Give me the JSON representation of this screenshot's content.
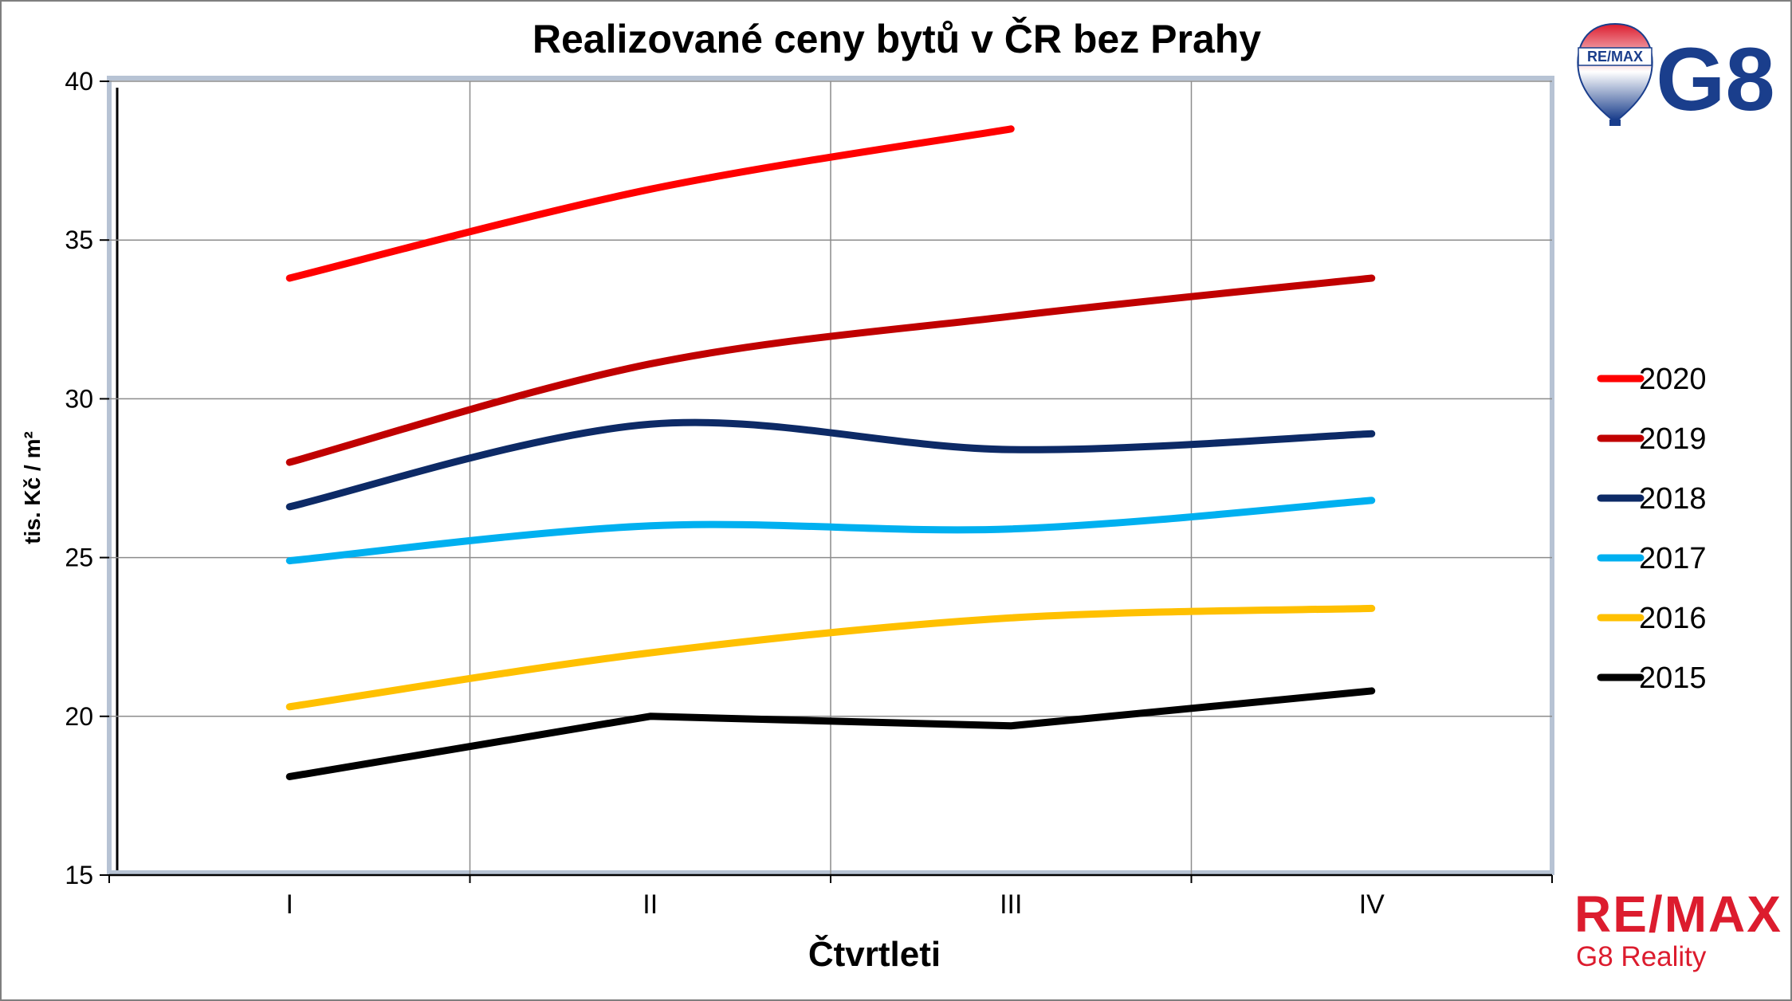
{
  "colors": {
    "background": "#ffffff",
    "grid": "#8c8c8c",
    "axis": "#1a1a1a",
    "frame": "#b7c3d4",
    "remax_red": "#dc1c2e",
    "remax_blue": "#1a3e8c"
  },
  "branding": {
    "badge_text": "RE/MAX",
    "badge_name": "G8",
    "footer_title": "RE/MAX",
    "footer_subtitle": "G8 Reality",
    "icon": "hot-air-balloon-icon"
  },
  "chart_data": {
    "type": "line",
    "title": "Realizované ceny bytů v ČR bez Prahy",
    "xlabel": "Čtvrtleti",
    "ylabel": "tis. Kč / m²",
    "categories": [
      "I",
      "II",
      "III",
      "IV"
    ],
    "ylim": [
      15,
      40
    ],
    "yticks": [
      15,
      20,
      25,
      30,
      35,
      40
    ],
    "grid": true,
    "legend_position": "right",
    "series": [
      {
        "name": "2020",
        "color": "#ff0000",
        "smooth": true,
        "values": [
          33.8,
          36.6,
          38.5,
          null
        ]
      },
      {
        "name": "2019",
        "color": "#c00000",
        "smooth": true,
        "values": [
          28.0,
          31.1,
          32.6,
          33.8
        ]
      },
      {
        "name": "2018",
        "color": "#0d2a66",
        "smooth": true,
        "values": [
          26.6,
          29.2,
          28.4,
          28.9
        ]
      },
      {
        "name": "2017",
        "color": "#00b0f0",
        "smooth": true,
        "values": [
          24.9,
          26.0,
          25.9,
          26.8
        ]
      },
      {
        "name": "2016",
        "color": "#ffc000",
        "smooth": true,
        "values": [
          20.3,
          22.0,
          23.1,
          23.4
        ]
      },
      {
        "name": "2015",
        "color": "#000000",
        "smooth": false,
        "values": [
          18.1,
          20.0,
          19.7,
          20.8
        ]
      }
    ]
  }
}
